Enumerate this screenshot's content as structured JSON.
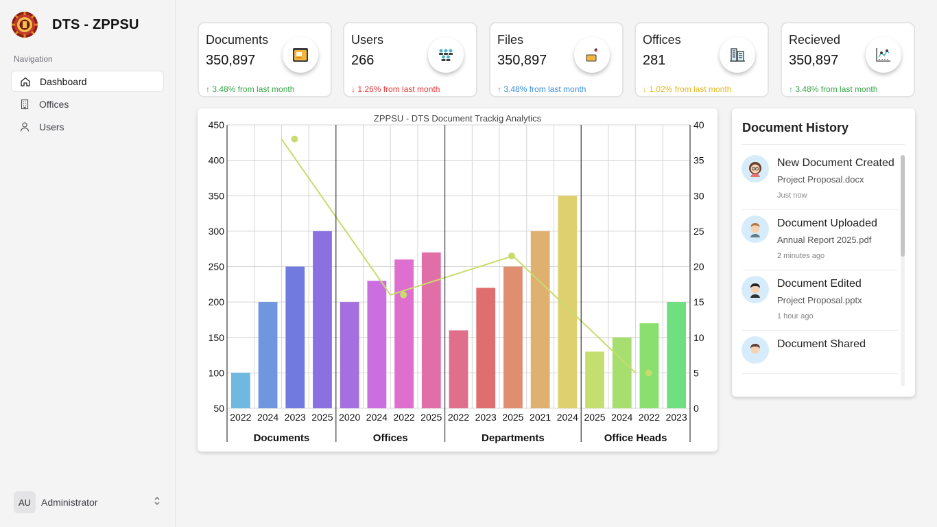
{
  "app": {
    "name": "DTS - ZPPSU"
  },
  "sidebar": {
    "nav_label": "Navigation",
    "items": [
      {
        "label": "Dashboard",
        "icon": "home-icon",
        "active": true
      },
      {
        "label": "Offices",
        "icon": "building-icon",
        "active": false
      },
      {
        "label": "Users",
        "icon": "user-icon",
        "active": false
      }
    ],
    "user": {
      "initials": "AU",
      "name": "Administrator"
    }
  },
  "stats": [
    {
      "title": "Documents",
      "value": "350,897",
      "trend": "3.48% from last month",
      "direction": "up",
      "color": "#3aa64a",
      "icon": "document-folder-icon"
    },
    {
      "title": "Users",
      "value": "266",
      "trend": "1.26% from last month",
      "direction": "down",
      "color": "#e53935",
      "icon": "users-group-icon"
    },
    {
      "title": "Files",
      "value": "350,897",
      "trend": "3.48% from last month",
      "direction": "up",
      "color": "#3b8fe0",
      "icon": "file-box-icon"
    },
    {
      "title": "Offices",
      "value": "281",
      "trend": "1.02% from last month",
      "direction": "down",
      "color": "#e6b820",
      "icon": "office-building-icon"
    },
    {
      "title": "Recieved",
      "value": "350,897",
      "trend": "3.48% from last month",
      "direction": "up",
      "color": "#3aa64a",
      "icon": "analytics-chart-icon"
    }
  ],
  "chart_data": {
    "type": "bar",
    "title": "ZPPSU - DTS Document Trackig Analytics",
    "groups": [
      {
        "name": "Documents",
        "categories": [
          "2022",
          "2024",
          "2023",
          "2025"
        ],
        "values": [
          100,
          200,
          250,
          300
        ],
        "colors": [
          "#6fb9e0",
          "#6f96df",
          "#717adf",
          "#8a70e0"
        ]
      },
      {
        "name": "Offices",
        "categories": [
          "2020",
          "2024",
          "2022",
          "2025"
        ],
        "values": [
          200,
          230,
          260,
          270
        ],
        "colors": [
          "#a56fdf",
          "#cb6fe0",
          "#df6fcf",
          "#df6fa6"
        ]
      },
      {
        "name": "Departments",
        "categories": [
          "2022",
          "2023",
          "2025",
          "2021",
          "2024"
        ],
        "values": [
          160,
          220,
          250,
          300,
          350
        ],
        "colors": [
          "#df6f8a",
          "#df6f6f",
          "#df8f6f",
          "#dfb06f",
          "#dfd06f"
        ]
      },
      {
        "name": "Office Heads",
        "categories": [
          "2025",
          "2024",
          "2022",
          "2023"
        ],
        "values": [
          130,
          150,
          170,
          200
        ],
        "colors": [
          "#c4df6f",
          "#a6df6f",
          "#8adf6f",
          "#6fdf7f"
        ]
      }
    ],
    "y_left": {
      "min": 50,
      "max": 450,
      "ticks": [
        50,
        100,
        150,
        200,
        250,
        300,
        350,
        400,
        450
      ]
    },
    "y_right": {
      "min": 0,
      "max": 40,
      "ticks": [
        0,
        5,
        10,
        15,
        20,
        25,
        30,
        35,
        40
      ]
    },
    "line_series": {
      "color": "#c8dc6e",
      "points": [
        {
          "group": 0,
          "line_value": 38
        },
        {
          "group": 1,
          "line_value": 16
        },
        {
          "group": 2,
          "line_value": 21.5
        },
        {
          "group": 3,
          "line_value": 5
        }
      ],
      "markers": [
        {
          "group": 0,
          "value": 38
        },
        {
          "group": 1,
          "value": 16
        },
        {
          "group": 2,
          "value": 21.5
        },
        {
          "group": 3,
          "value": 5
        }
      ]
    },
    "grid": true
  },
  "history": {
    "title": "Document History",
    "items": [
      {
        "title": "New Document Created",
        "file": "Project Proposal.docx",
        "time": "Just now",
        "avatar": "woman-avatar-icon"
      },
      {
        "title": "Document Uploaded",
        "file": "Annual Report 2025.pdf",
        "time": "2 minutes ago",
        "avatar": "man-avatar-icon"
      },
      {
        "title": "Document Edited",
        "file": "Project Proposal.pptx",
        "time": "1 hour ago",
        "avatar": "person-avatar-icon"
      },
      {
        "title": "Document Shared",
        "file": "",
        "time": "",
        "avatar": "person-avatar-icon"
      }
    ]
  }
}
